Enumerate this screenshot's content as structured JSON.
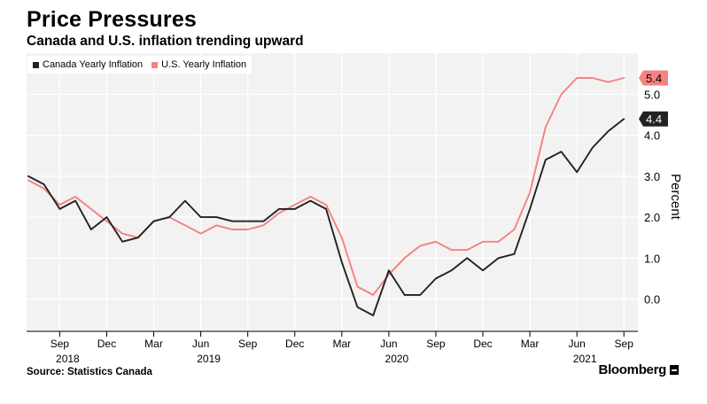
{
  "title": "Price Pressures",
  "subtitle": "Canada and U.S. inflation trending upward",
  "source": "Source: Statistics Canada",
  "brand": "Bloomberg",
  "colors": {
    "canada": "#222222",
    "us": "#f4827f",
    "background": "#f2f2f2",
    "grid": "#ffffff"
  },
  "chart_data": {
    "type": "line",
    "ylabel": "Percent",
    "ylim": [
      -0.75,
      5.9
    ],
    "yticks": [
      0.0,
      1.0,
      2.0,
      3.0,
      4.0,
      5.0
    ],
    "ytick_labels": [
      "0.0",
      "1.0",
      "2.0",
      "3.0",
      "4.0",
      "5.0"
    ],
    "x_start": "2018-07",
    "x_ticks": [
      {
        "label": "Sep",
        "index": 2,
        "year": "2018"
      },
      {
        "label": "Dec",
        "index": 5,
        "year": ""
      },
      {
        "label": "Mar",
        "index": 8,
        "year": ""
      },
      {
        "label": "Jun",
        "index": 11,
        "year": "2019"
      },
      {
        "label": "Sep",
        "index": 14,
        "year": ""
      },
      {
        "label": "Dec",
        "index": 17,
        "year": ""
      },
      {
        "label": "Mar",
        "index": 20,
        "year": ""
      },
      {
        "label": "Jun",
        "index": 23,
        "year": "2020"
      },
      {
        "label": "Sep",
        "index": 26,
        "year": ""
      },
      {
        "label": "Dec",
        "index": 29,
        "year": ""
      },
      {
        "label": "Mar",
        "index": 32,
        "year": ""
      },
      {
        "label": "Jun",
        "index": 35,
        "year": "2021"
      },
      {
        "label": "Sep",
        "index": 38,
        "year": ""
      }
    ],
    "legend_position": "top-left",
    "grid": true,
    "series": [
      {
        "name": "Canada Yearly Inflation",
        "color": "#222222",
        "last_label": "4.4",
        "values": [
          3.0,
          2.8,
          2.2,
          2.4,
          1.7,
          2.0,
          1.4,
          1.5,
          1.9,
          2.0,
          2.4,
          2.0,
          2.0,
          1.9,
          1.9,
          1.9,
          2.2,
          2.2,
          2.4,
          2.2,
          0.9,
          -0.2,
          -0.4,
          0.7,
          0.1,
          0.1,
          0.5,
          0.7,
          1.0,
          0.7,
          1.0,
          1.1,
          2.2,
          3.4,
          3.6,
          3.1,
          3.7,
          4.1,
          4.4
        ]
      },
      {
        "name": "U.S. Yearly Inflation",
        "color": "#f4827f",
        "last_label": "5.4",
        "values": [
          2.9,
          2.7,
          2.3,
          2.5,
          2.2,
          1.9,
          1.6,
          1.5,
          1.9,
          2.0,
          1.8,
          1.6,
          1.8,
          1.7,
          1.7,
          1.8,
          2.1,
          2.3,
          2.5,
          2.3,
          1.5,
          0.3,
          0.1,
          0.6,
          1.0,
          1.3,
          1.4,
          1.2,
          1.2,
          1.4,
          1.4,
          1.7,
          2.6,
          4.2,
          5.0,
          5.4,
          5.4,
          5.3,
          5.4
        ]
      }
    ]
  }
}
